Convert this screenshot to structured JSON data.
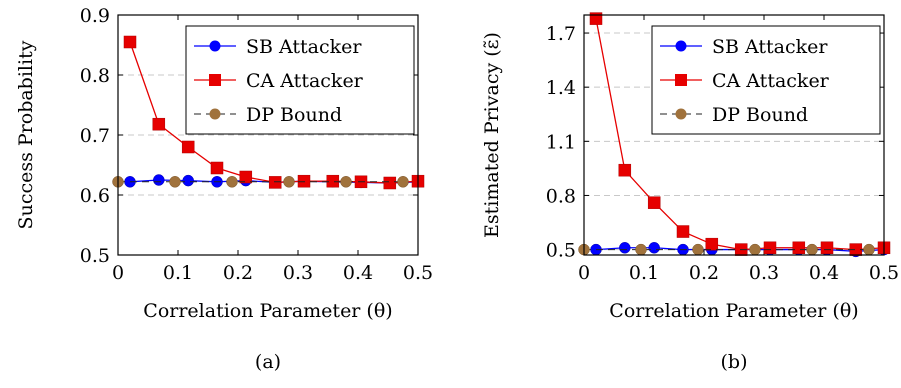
{
  "chart_data": [
    {
      "type": "line",
      "caption": "(a)",
      "xlabel": "Correlation Parameter (θ)",
      "ylabel": "Success Probability",
      "xlim": [
        0,
        0.5
      ],
      "ylim": [
        0.5,
        0.9
      ],
      "xticks": [
        "0",
        "0.1",
        "0.2",
        "0.3",
        "0.4",
        "0.5"
      ],
      "yticks": [
        "0.5",
        "0.6",
        "0.7",
        "0.8",
        "0.9"
      ],
      "grid": "horizontal dashed",
      "legend_position": "top-right",
      "series": [
        {
          "name": "SB Attacker",
          "color": "#0000ff",
          "marker": "circle",
          "dash": "solid",
          "x": [
            0.02,
            0.068,
            0.117,
            0.165,
            0.213,
            0.262,
            0.31,
            0.358,
            0.405,
            0.453,
            0.5
          ],
          "y": [
            0.622,
            0.625,
            0.624,
            0.622,
            0.624,
            0.621,
            0.623,
            0.622,
            0.621,
            0.62,
            0.622
          ]
        },
        {
          "name": "CA Attacker",
          "color": "#e60000",
          "marker": "square",
          "dash": "solid",
          "x": [
            0.02,
            0.068,
            0.117,
            0.165,
            0.213,
            0.262,
            0.31,
            0.358,
            0.405,
            0.453,
            0.5
          ],
          "y": [
            0.855,
            0.718,
            0.68,
            0.645,
            0.63,
            0.621,
            0.623,
            0.623,
            0.622,
            0.62,
            0.623
          ]
        },
        {
          "name": "DP Bound",
          "color": "#a0723c",
          "marker": "circle",
          "dash": "dashed",
          "x": [
            0,
            0.095,
            0.19,
            0.285,
            0.38,
            0.475
          ],
          "y": [
            0.622,
            0.622,
            0.622,
            0.622,
            0.622,
            0.622
          ]
        }
      ]
    },
    {
      "type": "line",
      "caption": "(b)",
      "xlabel": "Correlation Parameter (θ)",
      "ylabel": "Estimated Privacy (ε̃)",
      "xlim": [
        0,
        0.5
      ],
      "ylim": [
        0.47,
        1.8
      ],
      "xticks": [
        "0",
        "0.1",
        "0.2",
        "0.3",
        "0.4",
        "0.5"
      ],
      "yticks": [
        "0.5",
        "0.8",
        "1.1",
        "1.4",
        "1.7"
      ],
      "grid": "horizontal dashed",
      "legend_position": "top-right",
      "series": [
        {
          "name": "SB Attacker",
          "color": "#0000ff",
          "marker": "circle",
          "dash": "solid",
          "x": [
            0.02,
            0.068,
            0.117,
            0.165,
            0.213,
            0.262,
            0.31,
            0.358,
            0.405,
            0.453,
            0.5
          ],
          "y": [
            0.5,
            0.51,
            0.51,
            0.5,
            0.5,
            0.5,
            0.5,
            0.5,
            0.5,
            0.49,
            0.5
          ]
        },
        {
          "name": "CA Attacker",
          "color": "#e60000",
          "marker": "square",
          "dash": "solid",
          "x": [
            0.02,
            0.068,
            0.117,
            0.165,
            0.213,
            0.262,
            0.31,
            0.358,
            0.405,
            0.453,
            0.5
          ],
          "y": [
            1.78,
            0.94,
            0.76,
            0.6,
            0.53,
            0.5,
            0.51,
            0.51,
            0.51,
            0.5,
            0.51
          ]
        },
        {
          "name": "DP Bound",
          "color": "#a0723c",
          "marker": "circle",
          "dash": "dashed",
          "x": [
            0,
            0.095,
            0.19,
            0.285,
            0.38,
            0.475
          ],
          "y": [
            0.5,
            0.5,
            0.5,
            0.5,
            0.5,
            0.5
          ]
        }
      ]
    }
  ]
}
